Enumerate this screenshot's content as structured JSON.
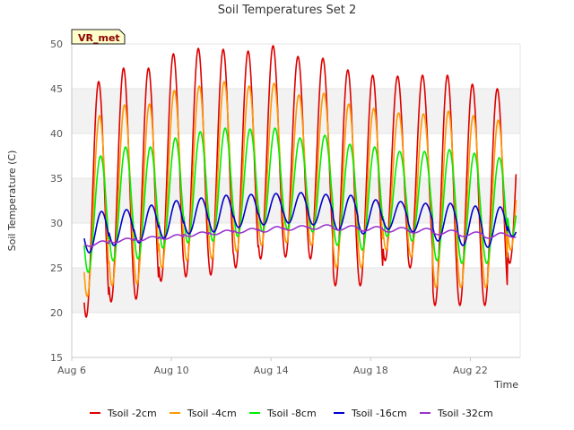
{
  "chart_data": {
    "type": "line",
    "title": "Soil Temperatures Set 2",
    "xlabel": "Time",
    "ylabel": "Soil Temperature (C)",
    "site_label": "VR_met",
    "ylim": [
      15,
      50
    ],
    "yticks": [
      15,
      20,
      25,
      30,
      35,
      40,
      45,
      50
    ],
    "xlim": [
      "2023-08-06",
      "2023-08-24"
    ],
    "xticks": [
      {
        "date": "2023-08-06",
        "label": "Aug 6"
      },
      {
        "date": "2023-08-10",
        "label": "Aug 10"
      },
      {
        "date": "2023-08-14",
        "label": "Aug 14"
      },
      {
        "date": "2023-08-18",
        "label": "Aug 18"
      },
      {
        "date": "2023-08-22",
        "label": "Aug 22"
      }
    ],
    "grid": "horizontal bands",
    "legend_position": "bottom",
    "days": [
      "2023-08-06",
      "2023-08-07",
      "2023-08-08",
      "2023-08-09",
      "2023-08-10",
      "2023-08-11",
      "2023-08-12",
      "2023-08-13",
      "2023-08-14",
      "2023-08-15",
      "2023-08-16",
      "2023-08-17",
      "2023-08-18",
      "2023-08-19",
      "2023-08-20",
      "2023-08-21",
      "2023-08-22",
      "2023-08-23"
    ],
    "series": [
      {
        "name": "Tsoil -2cm",
        "color": "#dd0000",
        "daily_min": [
          19.5,
          21.2,
          21.5,
          23.5,
          24.0,
          24.2,
          25.0,
          26.0,
          26.2,
          26.0,
          23.0,
          23.0,
          25.8,
          25.0,
          20.8,
          20.8,
          20.8,
          25.5
        ],
        "daily_max": [
          45.8,
          47.3,
          47.3,
          48.9,
          49.5,
          49.4,
          49.2,
          49.8,
          48.6,
          48.4,
          47.1,
          46.5,
          46.4,
          46.5,
          46.5,
          45.5,
          45.0,
          45.0
        ]
      },
      {
        "name": "Tsoil -4cm",
        "color": "#ff9900",
        "daily_min": [
          21.8,
          23.0,
          23.2,
          25.0,
          25.8,
          26.0,
          26.8,
          27.5,
          27.8,
          27.5,
          25.0,
          25.0,
          27.0,
          26.2,
          22.8,
          22.8,
          22.8,
          27.0
        ],
        "daily_max": [
          42.0,
          43.2,
          43.3,
          44.8,
          45.3,
          45.8,
          45.3,
          45.6,
          44.3,
          44.5,
          43.3,
          42.8,
          42.3,
          42.2,
          42.5,
          42.0,
          41.5,
          41.5
        ]
      },
      {
        "name": "Tsoil -8cm",
        "color": "#00ee00",
        "daily_min": [
          24.5,
          25.8,
          26.0,
          27.2,
          27.8,
          28.0,
          28.5,
          29.0,
          29.3,
          29.0,
          27.5,
          27.0,
          28.5,
          28.0,
          25.8,
          25.5,
          25.5,
          28.5
        ],
        "daily_max": [
          37.5,
          38.5,
          38.5,
          39.5,
          40.2,
          40.6,
          40.5,
          40.6,
          39.5,
          39.8,
          38.8,
          38.5,
          38.0,
          38.0,
          38.2,
          37.8,
          37.3,
          37.3
        ]
      },
      {
        "name": "Tsoil -16cm",
        "color": "#0000cc",
        "daily_min": [
          26.7,
          27.5,
          27.8,
          28.3,
          28.8,
          29.0,
          29.5,
          29.8,
          30.0,
          29.8,
          29.2,
          28.8,
          29.3,
          29.0,
          28.0,
          27.5,
          27.3,
          28.5
        ],
        "daily_max": [
          31.3,
          31.5,
          32.0,
          32.5,
          32.8,
          33.1,
          33.2,
          33.3,
          33.4,
          33.2,
          33.1,
          32.6,
          32.4,
          32.2,
          32.2,
          31.9,
          31.8,
          31.6
        ]
      },
      {
        "name": "Tsoil -32cm",
        "color": "#9933cc",
        "daily_min": [
          27.4,
          27.8,
          28.0,
          28.2,
          28.5,
          28.7,
          28.9,
          29.0,
          29.2,
          29.3,
          29.2,
          29.1,
          29.0,
          28.9,
          28.7,
          28.5,
          28.3,
          28.4
        ],
        "daily_max": [
          28.0,
          28.3,
          28.5,
          28.7,
          29.0,
          29.2,
          29.4,
          29.6,
          29.7,
          29.8,
          29.7,
          29.6,
          29.5,
          29.4,
          29.2,
          29.0,
          28.9,
          28.9
        ]
      }
    ]
  }
}
